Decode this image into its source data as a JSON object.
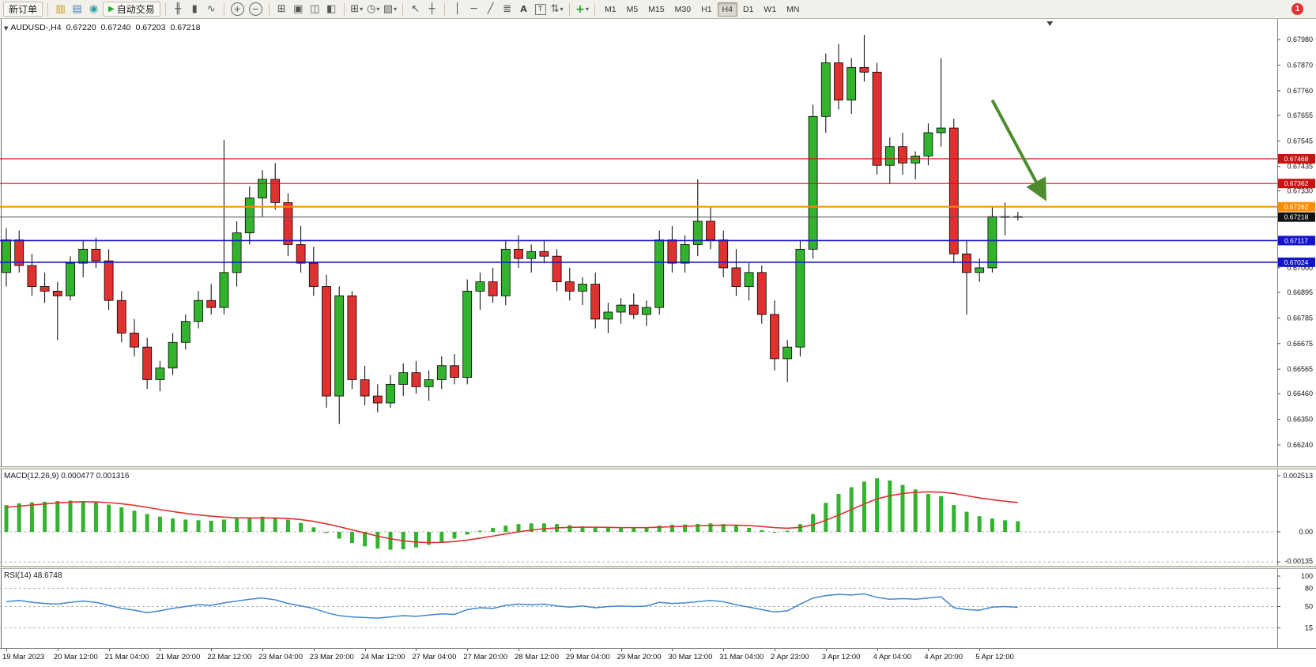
{
  "toolbar": {
    "new_order_label": "新订单",
    "autotrading_label": "自动交易",
    "timeframes": [
      "M1",
      "M5",
      "M15",
      "M30",
      "H1",
      "H4",
      "D1",
      "W1",
      "MN"
    ],
    "active_timeframe": "H4",
    "notification_count": "1"
  },
  "icons": {
    "market_watch": "▥",
    "data_window": "▤",
    "navigator": "◉",
    "autotrading_play": "▶",
    "bar_chart": "╫",
    "candlestick_chart": "▮",
    "line_chart": "∿",
    "zoom_in": "+",
    "zoom_out": "−",
    "tile_windows": "⊞",
    "cascade_windows": "▣",
    "tile_horizontal": "◫",
    "tile_vertical": "◧",
    "new_chart": "⊞",
    "period": "◷",
    "template": "▨",
    "cursor": "↖",
    "crosshair": "┼",
    "vertical_line": "│",
    "horizontal_line": "─",
    "trendline": "╱",
    "fibonacci": "≣",
    "text_tool": "A",
    "label_tool": "T",
    "arrows_tool": "⇅",
    "indicators": "+",
    "dropdown_caret": "▾",
    "collapse_triangle": "▼"
  },
  "chart_header": {
    "symbol_period": "AUDUSD-,H4",
    "open": "0.67220",
    "high": "0.67240",
    "low": "0.67203",
    "close": "0.67218"
  },
  "chart_data": [
    {
      "type": "candlestick",
      "symbol": "AUDUSD-",
      "timeframe": "H4",
      "y_range": [
        0.6624,
        0.6798
      ],
      "y_ticks": [
        "0.67980",
        "0.67870",
        "0.67760",
        "0.67655",
        "0.67545",
        "0.67435",
        "0.67330",
        "0.67220",
        "0.67110",
        "0.67000",
        "0.66895",
        "0.66785",
        "0.66675",
        "0.66565",
        "0.66460",
        "0.66350",
        "0.66240"
      ],
      "x_labels": [
        "19 Mar 2023",
        "20 Mar 12:00",
        "21 Mar 04:00",
        "21 Mar 20:00",
        "22 Mar 12:00",
        "23 Mar 04:00",
        "23 Mar 20:00",
        "24 Mar 12:00",
        "27 Mar 04:00",
        "27 Mar 20:00",
        "28 Mar 12:00",
        "29 Mar 04:00",
        "29 Mar 20:00",
        "30 Mar 12:00",
        "31 Mar 04:00",
        "2 Apr 23:00",
        "3 Apr 12:00",
        "4 Apr 04:00",
        "4 Apr 20:00",
        "5 Apr 12:00"
      ],
      "x_label_every": 4,
      "colors": {
        "bull": "#32b32d",
        "bear": "#e03131",
        "wick": "#000000"
      },
      "candles": [
        [
          0.6698,
          0.6717,
          0.6692,
          0.6712
        ],
        [
          0.6712,
          0.6716,
          0.6698,
          0.6701
        ],
        [
          0.6701,
          0.6706,
          0.6688,
          0.6692
        ],
        [
          0.6692,
          0.6698,
          0.6685,
          0.669
        ],
        [
          0.669,
          0.6694,
          0.6669,
          0.6688
        ],
        [
          0.6688,
          0.6705,
          0.6686,
          0.6702
        ],
        [
          0.6702,
          0.6712,
          0.6696,
          0.6708
        ],
        [
          0.6708,
          0.6713,
          0.67,
          0.6703
        ],
        [
          0.6703,
          0.6708,
          0.6682,
          0.6686
        ],
        [
          0.6686,
          0.669,
          0.6668,
          0.6672
        ],
        [
          0.6672,
          0.6678,
          0.6662,
          0.6666
        ],
        [
          0.6666,
          0.667,
          0.6648,
          0.6652
        ],
        [
          0.6652,
          0.666,
          0.6647,
          0.6657
        ],
        [
          0.6657,
          0.6672,
          0.6654,
          0.6668
        ],
        [
          0.6668,
          0.668,
          0.6665,
          0.6677
        ],
        [
          0.6677,
          0.669,
          0.6674,
          0.6686
        ],
        [
          0.6686,
          0.6693,
          0.668,
          0.6683
        ],
        [
          0.6683,
          0.6755,
          0.668,
          0.6698
        ],
        [
          0.6698,
          0.672,
          0.6692,
          0.6715
        ],
        [
          0.6715,
          0.6735,
          0.671,
          0.673
        ],
        [
          0.673,
          0.6742,
          0.6722,
          0.6738
        ],
        [
          0.6738,
          0.6745,
          0.6725,
          0.6728
        ],
        [
          0.6728,
          0.6732,
          0.6705,
          0.671
        ],
        [
          0.671,
          0.6718,
          0.6698,
          0.6702
        ],
        [
          0.6702,
          0.6709,
          0.6688,
          0.6692
        ],
        [
          0.6692,
          0.6697,
          0.664,
          0.6645
        ],
        [
          0.6645,
          0.6692,
          0.6633,
          0.6688
        ],
        [
          0.6688,
          0.669,
          0.6648,
          0.6652
        ],
        [
          0.6652,
          0.6658,
          0.6641,
          0.6645
        ],
        [
          0.6645,
          0.665,
          0.6638,
          0.6642
        ],
        [
          0.6642,
          0.6654,
          0.664,
          0.665
        ],
        [
          0.665,
          0.6659,
          0.6645,
          0.6655
        ],
        [
          0.6655,
          0.666,
          0.6646,
          0.6649
        ],
        [
          0.6649,
          0.6656,
          0.6643,
          0.6652
        ],
        [
          0.6652,
          0.6662,
          0.6648,
          0.6658
        ],
        [
          0.6658,
          0.6663,
          0.665,
          0.6653
        ],
        [
          0.6653,
          0.6695,
          0.665,
          0.669
        ],
        [
          0.669,
          0.6698,
          0.6682,
          0.6694
        ],
        [
          0.6694,
          0.67,
          0.6685,
          0.6688
        ],
        [
          0.6688,
          0.6712,
          0.6684,
          0.6708
        ],
        [
          0.6708,
          0.6714,
          0.67,
          0.6704
        ],
        [
          0.6704,
          0.671,
          0.6698,
          0.6707
        ],
        [
          0.6707,
          0.6712,
          0.6702,
          0.6705
        ],
        [
          0.6705,
          0.6708,
          0.669,
          0.6694
        ],
        [
          0.6694,
          0.67,
          0.6686,
          0.669
        ],
        [
          0.669,
          0.6696,
          0.6684,
          0.6693
        ],
        [
          0.6693,
          0.6698,
          0.6674,
          0.6678
        ],
        [
          0.6678,
          0.6685,
          0.6672,
          0.6681
        ],
        [
          0.6681,
          0.6687,
          0.6676,
          0.6684
        ],
        [
          0.6684,
          0.6689,
          0.6678,
          0.668
        ],
        [
          0.668,
          0.6686,
          0.6675,
          0.6683
        ],
        [
          0.6683,
          0.6716,
          0.668,
          0.6712
        ],
        [
          0.6712,
          0.6718,
          0.6698,
          0.6702
        ],
        [
          0.6702,
          0.6714,
          0.6698,
          0.671
        ],
        [
          0.671,
          0.6738,
          0.6705,
          0.672
        ],
        [
          0.672,
          0.6726,
          0.6708,
          0.6712
        ],
        [
          0.6712,
          0.6716,
          0.6696,
          0.67
        ],
        [
          0.67,
          0.6708,
          0.6688,
          0.6692
        ],
        [
          0.6692,
          0.6702,
          0.6686,
          0.6698
        ],
        [
          0.6698,
          0.6701,
          0.6676,
          0.668
        ],
        [
          0.668,
          0.6686,
          0.6656,
          0.6661
        ],
        [
          0.6661,
          0.6669,
          0.6651,
          0.6666
        ],
        [
          0.6666,
          0.6712,
          0.6662,
          0.6708
        ],
        [
          0.6708,
          0.677,
          0.6704,
          0.6765
        ],
        [
          0.6765,
          0.6792,
          0.6758,
          0.6788
        ],
        [
          0.6788,
          0.6796,
          0.6768,
          0.6772
        ],
        [
          0.6772,
          0.679,
          0.6766,
          0.6786
        ],
        [
          0.6786,
          0.68,
          0.678,
          0.6784
        ],
        [
          0.6784,
          0.6788,
          0.674,
          0.6744
        ],
        [
          0.6744,
          0.6756,
          0.6736,
          0.6752
        ],
        [
          0.6752,
          0.6758,
          0.674,
          0.6745
        ],
        [
          0.6745,
          0.675,
          0.6738,
          0.6748
        ],
        [
          0.6748,
          0.6762,
          0.6744,
          0.6758
        ],
        [
          0.6758,
          0.679,
          0.6752,
          0.676
        ],
        [
          0.676,
          0.6764,
          0.6702,
          0.6706
        ],
        [
          0.6706,
          0.6712,
          0.668,
          0.6698
        ],
        [
          0.6698,
          0.6704,
          0.6694,
          0.67
        ],
        [
          0.67,
          0.6726,
          0.6698,
          0.6722
        ],
        [
          0.6722,
          0.6728,
          0.6714,
          0.6722
        ],
        [
          0.6722,
          0.6724,
          0.67203,
          0.67218
        ]
      ],
      "hlines": [
        {
          "price": 0.67468,
          "color": "#cc1111",
          "width": 1.2,
          "label": "0.67468",
          "badge_color": "#cc1111"
        },
        {
          "price": 0.67362,
          "color": "#cc1111",
          "width": 1.2,
          "label": "0.67362",
          "badge_color": "#cc1111"
        },
        {
          "price": 0.67262,
          "color": "#ff8c00",
          "width": 2,
          "label": "0.67262",
          "badge_color": "#ff8c00"
        },
        {
          "price": 0.67218,
          "color": "#4d4d4d",
          "width": 1,
          "label": "0.67218",
          "badge_color": "#111111"
        },
        {
          "price": 0.67117,
          "color": "#1414cc",
          "width": 1.6,
          "label": "0.67117",
          "badge_color": "#1414cc"
        },
        {
          "price": 0.67024,
          "color": "#1414cc",
          "width": 1.6,
          "label": "0.67024",
          "badge_color": "#1414cc"
        }
      ],
      "arrow_annotation": {
        "from_bar": 77,
        "from_price": 0.6772,
        "to_bar": 81,
        "to_price": 0.6731,
        "color": "#4e8d2f"
      },
      "shift_marker_bar": 81.5
    },
    {
      "type": "bar",
      "name": "MACD",
      "label": "MACD(12,26,9)",
      "values_text": "0.000477 0.001316",
      "y_ticks": [
        "0.002513",
        "0.00",
        "-0.00135"
      ],
      "colors": {
        "histogram": "#32b32d",
        "signal": "#e03131"
      },
      "histogram": [
        0.0012,
        0.00128,
        0.00132,
        0.00135,
        0.00138,
        0.0014,
        0.00138,
        0.00132,
        0.00122,
        0.0011,
        0.00095,
        0.0008,
        0.00068,
        0.0006,
        0.00055,
        0.00052,
        0.0005,
        0.00055,
        0.0006,
        0.00065,
        0.00068,
        0.00065,
        0.00055,
        0.0004,
        0.0002,
        -5e-05,
        -0.0003,
        -0.0005,
        -0.00065,
        -0.00075,
        -0.0008,
        -0.00078,
        -0.0007,
        -0.00058,
        -0.00045,
        -0.0003,
        -0.00012,
        5e-05,
        0.00018,
        0.00028,
        0.00035,
        0.00038,
        0.00038,
        0.00035,
        0.0003,
        0.00025,
        0.0002,
        0.00018,
        0.00017,
        0.00018,
        0.0002,
        0.00028,
        0.00032,
        0.00033,
        0.00035,
        0.00038,
        0.00035,
        0.00028,
        0.00018,
        8e-05,
        0.0,
        5e-05,
        0.00035,
        0.0008,
        0.0013,
        0.0017,
        0.002,
        0.00225,
        0.0024,
        0.0023,
        0.0021,
        0.0019,
        0.0017,
        0.0016,
        0.0012,
        0.0009,
        0.0007,
        0.0006,
        0.00052,
        0.000477
      ],
      "signal": [
        0.0011,
        0.00115,
        0.0012,
        0.00125,
        0.0013,
        0.00133,
        0.00135,
        0.00134,
        0.00131,
        0.00126,
        0.00119,
        0.0011,
        0.001,
        0.00091,
        0.00083,
        0.00076,
        0.0007,
        0.00066,
        0.00063,
        0.00062,
        0.00062,
        0.00062,
        0.0006,
        0.00055,
        0.00047,
        0.00036,
        0.00023,
        9e-05,
        -5e-05,
        -0.00019,
        -0.00031,
        -0.0004,
        -0.00046,
        -0.00048,
        -0.00047,
        -0.00043,
        -0.00037,
        -0.00028,
        -0.00019,
        -9e-05,
        0.0,
        8e-05,
        0.00014,
        0.00018,
        0.0002,
        0.00021,
        0.00021,
        0.0002,
        0.00019,
        0.00019,
        0.00019,
        0.00021,
        0.00023,
        0.00025,
        0.00027,
        0.00029,
        0.0003,
        0.0003,
        0.00028,
        0.00024,
        0.00019,
        0.00016,
        0.0002,
        0.00032,
        0.00052,
        0.00075,
        0.001,
        0.00125,
        0.00148,
        0.00162,
        0.00172,
        0.00177,
        0.00179,
        0.00178,
        0.00172,
        0.00162,
        0.00152,
        0.00144,
        0.00137,
        0.001316
      ]
    },
    {
      "type": "line",
      "name": "RSI",
      "label": "RSI(14)",
      "value_text": "48.6748",
      "y_ticks": [
        "100",
        "80",
        "50",
        "15"
      ],
      "levels": [
        80,
        50,
        15
      ],
      "color": "#3f87d0",
      "values": [
        58,
        60,
        57,
        55,
        54,
        57,
        59,
        57,
        52,
        47,
        44,
        40,
        43,
        47,
        50,
        53,
        52,
        56,
        59,
        62,
        64,
        61,
        55,
        51,
        47,
        40,
        35,
        33,
        32,
        31,
        33,
        35,
        34,
        36,
        38,
        37,
        45,
        48,
        47,
        52,
        54,
        53,
        54,
        51,
        49,
        51,
        48,
        50,
        51,
        50,
        51,
        57,
        55,
        56,
        58,
        60,
        58,
        53,
        49,
        45,
        41,
        43,
        54,
        64,
        68,
        70,
        69,
        71,
        65,
        62,
        63,
        62,
        64,
        66,
        48,
        45,
        44,
        49,
        50,
        48.67
      ]
    }
  ]
}
